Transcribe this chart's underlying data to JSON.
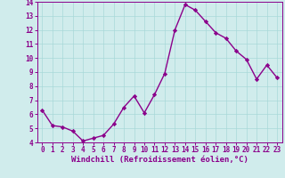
{
  "x": [
    0,
    1,
    2,
    3,
    4,
    5,
    6,
    7,
    8,
    9,
    10,
    11,
    12,
    13,
    14,
    15,
    16,
    17,
    18,
    19,
    20,
    21,
    22,
    23
  ],
  "y": [
    6.3,
    5.2,
    5.1,
    4.8,
    4.1,
    4.3,
    4.5,
    5.3,
    6.5,
    7.3,
    6.1,
    7.4,
    8.9,
    12.0,
    13.8,
    13.4,
    12.6,
    11.8,
    11.4,
    10.5,
    9.9,
    8.5,
    9.5,
    8.6
  ],
  "line_color": "#8B008B",
  "marker": "D",
  "marker_size": 2.2,
  "line_width": 1.0,
  "xlabel": "Windchill (Refroidissement éolien,°C)",
  "xlabel_fontsize": 6.5,
  "ylim": [
    4,
    14
  ],
  "yticks": [
    4,
    5,
    6,
    7,
    8,
    9,
    10,
    11,
    12,
    13,
    14
  ],
  "xticks": [
    0,
    1,
    2,
    3,
    4,
    5,
    6,
    7,
    8,
    9,
    10,
    11,
    12,
    13,
    14,
    15,
    16,
    17,
    18,
    19,
    20,
    21,
    22,
    23
  ],
  "grid_color": "#a8d8d8",
  "bg_color": "#d0ecec",
  "tick_fontsize": 5.5,
  "tick_color": "#8B008B"
}
